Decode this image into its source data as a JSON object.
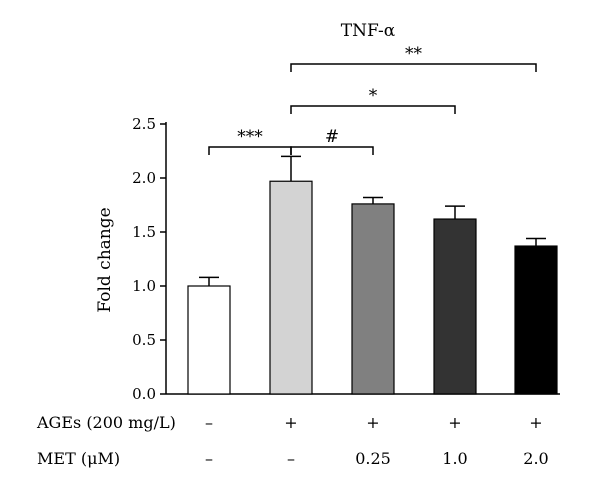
{
  "chart_data": {
    "type": "bar",
    "title": "TNF-α",
    "ylabel": "Fold change",
    "ylim": [
      0,
      2.5
    ],
    "yticks": [
      "0.0",
      "0.5",
      "1.0",
      "1.5",
      "2.0",
      "2.5"
    ],
    "bars": [
      {
        "value": 1.0,
        "error": 0.08,
        "color": "#ffffff"
      },
      {
        "value": 1.97,
        "error": 0.23,
        "color": "#d3d3d3"
      },
      {
        "value": 1.76,
        "error": 0.06,
        "color": "#808080"
      },
      {
        "value": 1.62,
        "error": 0.12,
        "color": "#333333"
      },
      {
        "value": 1.37,
        "error": 0.07,
        "color": "#000000"
      }
    ],
    "significance": [
      {
        "from": 0,
        "to": 1,
        "label": "***"
      },
      {
        "from": 1,
        "to": 2,
        "label": "#"
      },
      {
        "from": 1,
        "to": 3,
        "label": "*"
      },
      {
        "from": 1,
        "to": 4,
        "label": "**"
      }
    ],
    "treatment_rows": [
      {
        "label": "AGEs (200 mg/L)",
        "values": [
          "–",
          "+",
          "+",
          "+",
          "+"
        ]
      },
      {
        "label": "MET (μM)",
        "values": [
          "–",
          "–",
          "0.25",
          "1.0",
          "2.0"
        ]
      }
    ],
    "grid": false
  }
}
